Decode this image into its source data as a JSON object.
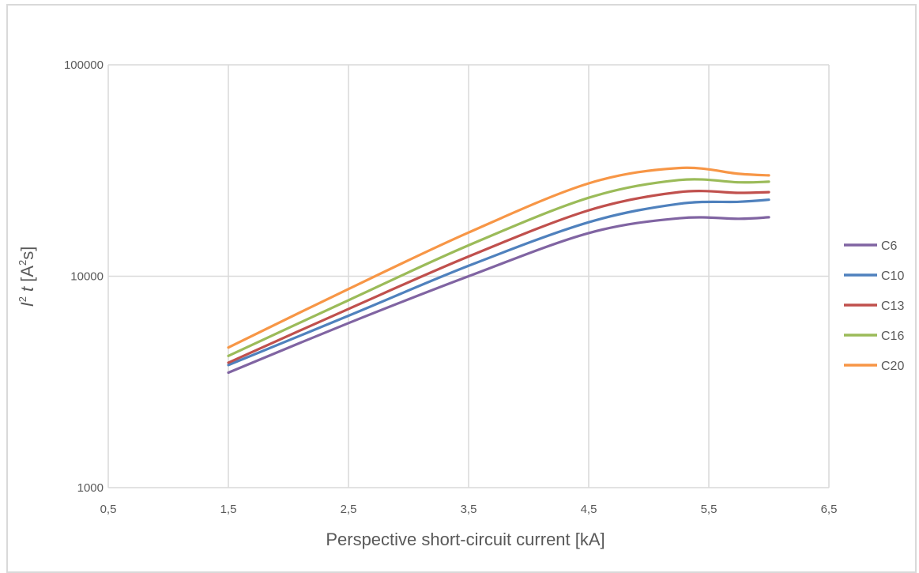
{
  "chart_data": {
    "type": "line",
    "xlabel": "Perspective short-circuit current [kA]",
    "ylabel": "I² t [A²s]",
    "ylabel_parts": {
      "i": "I",
      "sup1": "2",
      "t": " t",
      "open": " [A",
      "sup2": "2",
      "close": "s]"
    },
    "x_scale": "linear",
    "y_scale": "log",
    "xlim": [
      0.5,
      6.5
    ],
    "ylim": [
      1000,
      100000
    ],
    "x_ticks": [
      "0,5",
      "1,5",
      "2,5",
      "3,5",
      "4,5",
      "5,5",
      "6,5"
    ],
    "y_ticks": [
      "1000",
      "10000",
      "100000"
    ],
    "grid": true,
    "legend_position": "right",
    "x": [
      1.5,
      2.5,
      3.5,
      4.5,
      5.25,
      5.75,
      6.0
    ],
    "series": [
      {
        "name": "C6",
        "color": "#8064a2",
        "values": [
          3500,
          6000,
          10000,
          16000,
          18800,
          18700,
          19000
        ]
      },
      {
        "name": "C10",
        "color": "#4f81bd",
        "values": [
          3800,
          6500,
          11200,
          18000,
          22000,
          22500,
          23000
        ]
      },
      {
        "name": "C13",
        "color": "#c0504d",
        "values": [
          3900,
          7000,
          12400,
          20500,
          25000,
          24800,
          25000
        ]
      },
      {
        "name": "C16",
        "color": "#9bbb59",
        "values": [
          4200,
          7700,
          14000,
          23500,
          28500,
          27800,
          28000
        ]
      },
      {
        "name": "C20",
        "color": "#f79646",
        "values": [
          4600,
          8700,
          16100,
          27500,
          32500,
          30500,
          30000
        ]
      }
    ]
  }
}
